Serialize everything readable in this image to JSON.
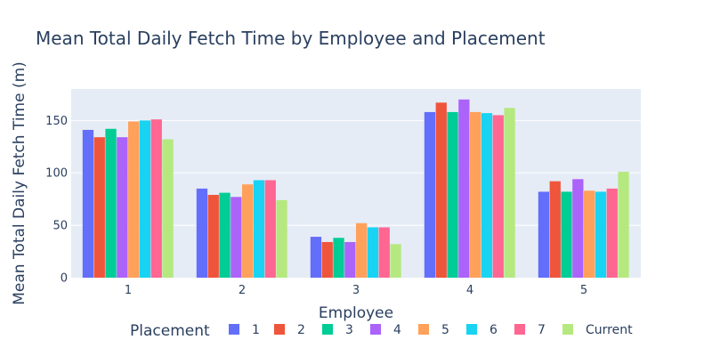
{
  "chart_data": {
    "type": "bar",
    "title": "Mean Total Daily Fetch Time by Employee and Placement",
    "xlabel": "Employee",
    "ylabel": "Mean Total Daily Fetch Time (m)",
    "ylim": [
      0,
      180
    ],
    "yticks": [
      0,
      50,
      100,
      150
    ],
    "grid": true,
    "legend_position": "bottom",
    "legend_title": "Placement",
    "categories": [
      "1",
      "2",
      "3",
      "4",
      "5"
    ],
    "series": [
      {
        "name": "1",
        "color": "#636efa",
        "values": [
          141,
          85,
          39,
          158,
          82
        ]
      },
      {
        "name": "2",
        "color": "#ef553b",
        "values": [
          134,
          79,
          34,
          167,
          92
        ]
      },
      {
        "name": "3",
        "color": "#00cc96",
        "values": [
          142,
          81,
          38,
          158,
          82
        ]
      },
      {
        "name": "4",
        "color": "#ab63fa",
        "values": [
          134,
          77,
          34,
          170,
          94
        ]
      },
      {
        "name": "5",
        "color": "#ffa15a",
        "values": [
          149,
          89,
          52,
          158,
          83
        ]
      },
      {
        "name": "6",
        "color": "#19d3f3",
        "values": [
          150,
          93,
          48,
          157,
          82
        ]
      },
      {
        "name": "7",
        "color": "#ff6692",
        "values": [
          151,
          93,
          48,
          155,
          85
        ]
      },
      {
        "name": "Current",
        "color": "#b6e880",
        "values": [
          132,
          74,
          32,
          162,
          101
        ]
      }
    ]
  }
}
